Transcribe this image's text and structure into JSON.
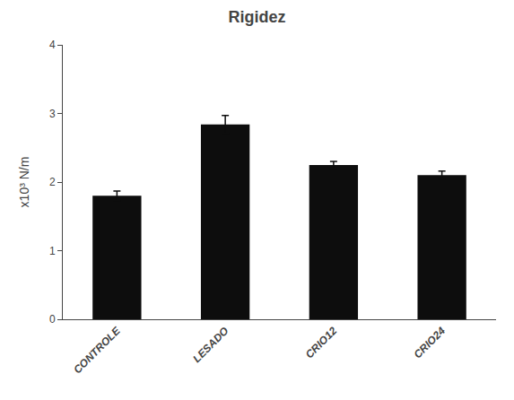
{
  "chart_data": {
    "type": "bar",
    "title": "Rigidez",
    "categories": [
      "CONTROLE",
      "LESADO",
      "CRIO12",
      "CRIO24"
    ],
    "values": [
      1.8,
      2.84,
      2.25,
      2.1
    ],
    "errors": [
      0.07,
      0.13,
      0.05,
      0.06
    ],
    "color": "#0d0d0d",
    "ylabel": "x10³ N/m",
    "ylim": [
      0,
      4
    ],
    "yticks": [
      0,
      1,
      2,
      3,
      4
    ],
    "grid": false
  }
}
